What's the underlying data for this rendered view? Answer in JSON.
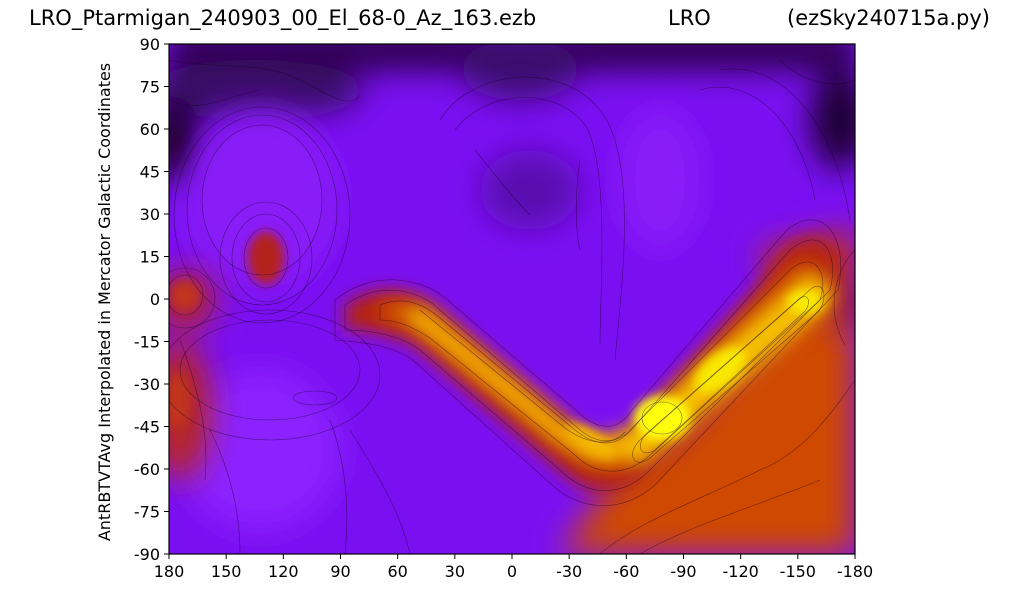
{
  "title": {
    "left": "LRO_Ptarmigan_240903_00_El_68-0_Az_163.ezb",
    "center": "LRO",
    "right": "(ezSky240715a.py)"
  },
  "chart_data": {
    "type": "heatmap",
    "title": "LRO_Ptarmigan_240903_00_El_68-0_Az_163.ezb",
    "xlabel": "",
    "ylabel": "AntRBTVTAvg Interpolated in Mercator Galactic Coordinates",
    "xlim": [
      180,
      -180
    ],
    "ylim": [
      -90,
      90
    ],
    "x_ticks": [
      180,
      150,
      120,
      90,
      60,
      30,
      0,
      -30,
      -60,
      -90,
      -120,
      -150,
      -180
    ],
    "y_ticks": [
      90,
      75,
      60,
      45,
      30,
      15,
      0,
      -15,
      -30,
      -45,
      -60,
      -75,
      -90
    ],
    "x_tick_labels": [
      "180",
      "150",
      "120",
      "90",
      "60",
      "30",
      "0",
      "-30",
      "-60",
      "-90",
      "-120",
      "-150",
      "-180"
    ],
    "y_tick_labels": [
      "90",
      "75",
      "60",
      "45",
      "30",
      "15",
      "0",
      "-15",
      "-30",
      "-45",
      "-60",
      "-75",
      "-90"
    ],
    "colormap": "gnuplot",
    "contours": true,
    "features": [
      {
        "kind": "band",
        "path": [
          [
            70,
            -2
          ],
          [
            45,
            -10
          ],
          [
            0,
            -42
          ],
          [
            -45,
            -48
          ],
          [
            -65,
            -42
          ],
          [
            -150,
            2
          ]
        ]
      },
      {
        "kind": "peak",
        "lon": -85,
        "lat": -40
      },
      {
        "kind": "peak",
        "lon": 128,
        "lat": 12
      },
      {
        "kind": "peak",
        "lon": 175,
        "lat": -2
      },
      {
        "kind": "peak",
        "lon": 175,
        "lat": -40
      }
    ]
  }
}
